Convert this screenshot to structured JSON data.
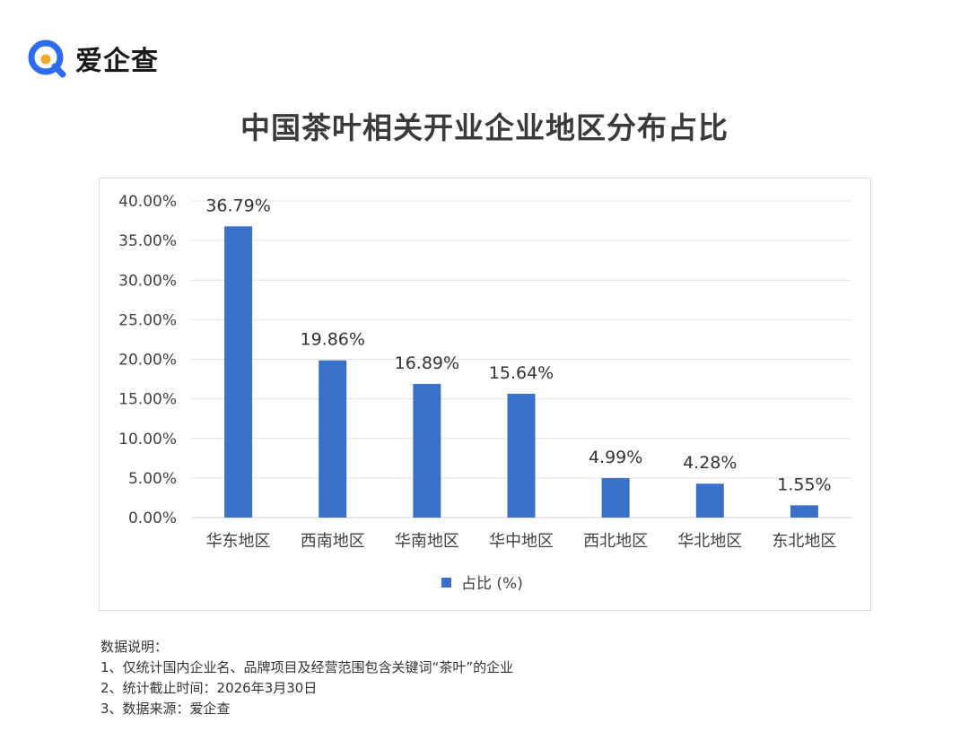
{
  "brand": {
    "name": "爱企查",
    "colors": {
      "ring": "#2d6cf0",
      "dot": "#f5a623"
    }
  },
  "notes": {
    "heading": "数据说明：",
    "items": [
      "1、仅统计国内企业名、品牌项目及经营范围包含关键词“茶叶”的企业",
      "2、统计截止时间：2026年3月30日",
      "3、数据来源：爱企查"
    ]
  },
  "chart_data": {
    "type": "bar",
    "title": "中国茶叶相关开业企业地区分布占比",
    "categories": [
      "华东地区",
      "西南地区",
      "华南地区",
      "华中地区",
      "西北地区",
      "华北地区",
      "东北地区"
    ],
    "series": [
      {
        "name": "占比 (%)",
        "values": [
          36.79,
          19.86,
          16.89,
          15.64,
          4.99,
          4.28,
          1.55
        ],
        "labels": [
          "36.79%",
          "19.86%",
          "16.89%",
          "15.64%",
          "4.99%",
          "4.28%",
          "1.55%"
        ],
        "color": "#3a70c8"
      }
    ],
    "yticks": [
      "0.00%",
      "5.00%",
      "10.00%",
      "15.00%",
      "20.00%",
      "25.00%",
      "30.00%",
      "35.00%",
      "40.00%"
    ],
    "ylim": [
      0,
      40
    ],
    "grid": true,
    "legend": "bottom"
  }
}
